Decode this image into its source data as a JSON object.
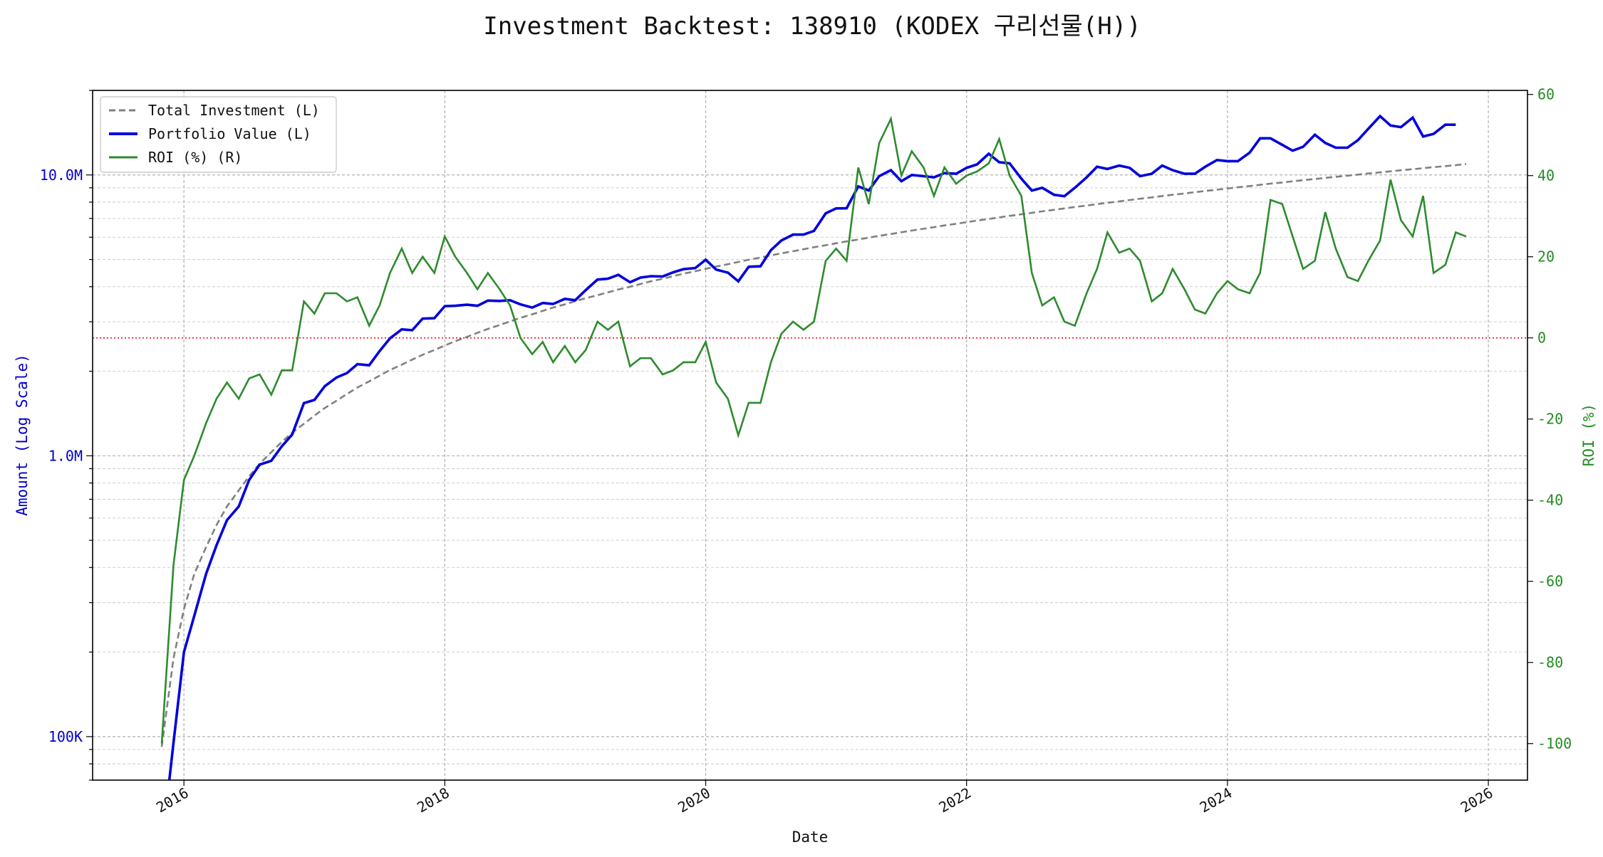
{
  "chart_data": {
    "type": "line",
    "title": "Investment Backtest: 138910 (KODEX 구리선물(H))",
    "xlabel": "Date",
    "ylabel_left": "Amount (Log Scale)",
    "ylabel_right": "ROI (%)",
    "x_ticks": [
      "2016",
      "2018",
      "2020",
      "2022",
      "2024",
      "2026"
    ],
    "x_range": [
      2015.3,
      2026.3
    ],
    "y_left_scale": "log",
    "y_left_range": [
      70000,
      20000000
    ],
    "y_left_ticks": [
      {
        "value": 100000,
        "label": "100K"
      },
      {
        "value": 1000000,
        "label": "1.0M"
      },
      {
        "value": 10000000,
        "label": "10.0M"
      }
    ],
    "y_right_range": [
      -109,
      61
    ],
    "y_right_ticks": [
      -100,
      -80,
      -60,
      -40,
      -20,
      0,
      20,
      40,
      60
    ],
    "grid": true,
    "legend_position": "top-left",
    "zero_line": {
      "axis": "right",
      "value": 0,
      "color": "#ff0000"
    },
    "colors": {
      "left_axis": "#0000cc",
      "right_axis": "#228b22"
    },
    "series": [
      {
        "name": "Total Investment (L)",
        "axis": "left",
        "color": "#808080",
        "style": "dashed"
      },
      {
        "name": "Portfolio Value (L)",
        "axis": "left",
        "color": "#0000dd",
        "style": "solid"
      },
      {
        "name": "ROI (%) (R)",
        "axis": "right",
        "color": "#2e8b2e",
        "style": "solid"
      }
    ],
    "x": [
      2015.83,
      2015.92,
      2016.0,
      2016.08,
      2016.17,
      2016.25,
      2016.33,
      2016.42,
      2016.5,
      2016.58,
      2016.67,
      2016.75,
      2016.83,
      2016.92,
      2017.0,
      2017.08,
      2017.17,
      2017.25,
      2017.33,
      2017.42,
      2017.5,
      2017.58,
      2017.67,
      2017.75,
      2017.83,
      2017.92,
      2018.0,
      2018.08,
      2018.17,
      2018.25,
      2018.33,
      2018.42,
      2018.5,
      2018.58,
      2018.67,
      2018.75,
      2018.83,
      2018.92,
      2019.0,
      2019.08,
      2019.17,
      2019.25,
      2019.33,
      2019.42,
      2019.5,
      2019.58,
      2019.67,
      2019.75,
      2019.83,
      2019.92,
      2020.0,
      2020.08,
      2020.17,
      2020.25,
      2020.33,
      2020.42,
      2020.5,
      2020.58,
      2020.67,
      2020.75,
      2020.83,
      2020.92,
      2021.0,
      2021.08,
      2021.17,
      2021.25,
      2021.33,
      2021.42,
      2021.5,
      2021.58,
      2021.67,
      2021.75,
      2021.83,
      2021.92,
      2022.0,
      2022.08,
      2022.17,
      2022.25,
      2022.33,
      2022.42,
      2022.5,
      2022.58,
      2022.67,
      2022.75,
      2022.83,
      2022.92,
      2023.0,
      2023.08,
      2023.17,
      2023.25,
      2023.33,
      2023.42,
      2023.5,
      2023.58,
      2023.67,
      2023.75,
      2023.83,
      2023.92,
      2024.0,
      2024.08,
      2024.17,
      2024.25,
      2024.33,
      2024.42,
      2024.5,
      2024.58,
      2024.67,
      2024.75,
      2024.83,
      2024.92,
      2025.0,
      2025.08,
      2025.17,
      2025.25,
      2025.33,
      2025.42,
      2025.5,
      2025.58,
      2025.67,
      2025.75,
      2025.83
    ],
    "roi": [
      -100,
      -56,
      -35,
      -29,
      -21,
      -15,
      -11,
      -15,
      -10,
      -9,
      -14,
      -8,
      -8,
      9,
      6,
      11,
      11,
      9,
      10,
      3,
      8,
      16,
      22,
      16,
      20,
      16,
      25,
      20,
      16,
      12,
      16,
      12,
      8,
      0,
      -4,
      -1,
      -6,
      -2,
      -6,
      -3,
      4,
      2,
      4,
      -7,
      -5,
      -5,
      -9,
      -8,
      -6,
      -6,
      -1,
      -11,
      -15,
      -24,
      -16,
      -16,
      -6,
      1,
      4,
      2,
      4,
      19,
      22,
      19,
      42,
      33,
      48,
      54,
      40,
      46,
      42,
      35,
      42,
      38,
      40,
      41,
      43,
      49,
      40,
      35,
      16,
      8,
      10,
      4,
      3,
      11,
      17,
      26,
      21,
      22,
      19,
      9,
      11,
      17,
      12,
      7,
      6,
      11,
      14,
      12,
      11,
      16,
      34,
      33,
      25,
      17,
      19,
      31,
      22,
      15,
      14,
      19,
      24,
      39,
      29,
      25,
      35,
      16,
      18,
      26,
      25
    ],
    "total_investment": [
      92000,
      190000,
      285000,
      380000,
      473000,
      567000,
      660000,
      753000,
      845000,
      937000,
      1030000,
      1120000,
      1210000,
      1300000,
      1390000,
      1480000,
      1570000,
      1660000,
      1750000,
      1840000,
      1930000,
      2020000,
      2110000,
      2200000,
      2290000,
      2380000,
      2470000,
      2560000,
      2650000,
      2740000,
      2830000,
      2920000,
      3010000,
      3100000,
      3190000,
      3280000,
      3370000,
      3460000,
      3550000,
      3640000,
      3730000,
      3820000,
      3910000,
      4000000,
      4090000,
      4180000,
      4270000,
      4360000,
      4450000,
      4540000,
      4630000,
      4720000,
      4810000,
      4900000,
      4990000,
      5080000,
      5170000,
      5260000,
      5350000,
      5440000,
      5530000,
      5620000,
      5710000,
      5800000,
      5890000,
      5980000,
      6070000,
      6160000,
      6250000,
      6340000,
      6430000,
      6520000,
      6610000,
      6700000,
      6790000,
      6880000,
      6970000,
      7060000,
      7150000,
      7240000,
      7330000,
      7420000,
      7510000,
      7600000,
      7690000,
      7780000,
      7870000,
      7960000,
      8050000,
      8140000,
      8230000,
      8320000,
      8410000,
      8500000,
      8590000,
      8680000,
      8770000,
      8860000,
      8950000,
      9040000,
      9130000,
      9220000,
      9310000,
      9400000,
      9490000,
      9580000,
      9670000,
      9760000,
      9850000,
      9940000,
      10030000,
      10120000,
      10210000,
      10300000,
      10390000,
      10480000,
      10570000,
      10660000,
      10750000,
      10840000,
      10930000
    ],
    "portfolio_value": [
      40000,
      95000,
      200000,
      270000,
      380000,
      480000,
      590000,
      660000,
      820000,
      930000,
      960000,
      1080000,
      1190000,
      1540000,
      1580000,
      1770000,
      1900000,
      1970000,
      2120000,
      2100000,
      2360000,
      2620000,
      2820000,
      2800000,
      3080000,
      3090000,
      3410000,
      3420000,
      3450000,
      3420000,
      3570000,
      3560000,
      3580000,
      3460000,
      3370000,
      3500000,
      3470000,
      3620000,
      3580000,
      3890000,
      4240000,
      4270000,
      4410000,
      4150000,
      4310000,
      4360000,
      4350000,
      4500000,
      4620000,
      4660000,
      4990000,
      4600000,
      4490000,
      4180000,
      4710000,
      4730000,
      5400000,
      5840000,
      6130000,
      6130000,
      6320000,
      7300000,
      7600000,
      7610000,
      9100000,
      8800000,
      9900000,
      10400000,
      9500000,
      10000000,
      9900000,
      9800000,
      10150000,
      10100000,
      10600000,
      10900000,
      11900000,
      11100000,
      11000000,
      9700000,
      8800000,
      9000000,
      8500000,
      8400000,
      9000000,
      9800000,
      10700000,
      10500000,
      10800000,
      10600000,
      9900000,
      10100000,
      10800000,
      10400000,
      10100000,
      10100000,
      10700000,
      11300000,
      11200000,
      11200000,
      12000000,
      13500000,
      13500000,
      12800000,
      12200000,
      12600000,
      13900000,
      13000000,
      12500000,
      12500000,
      13300000,
      14600000,
      16200000,
      15000000,
      14800000,
      16000000,
      13700000,
      14000000,
      15100000,
      15100000
    ]
  }
}
